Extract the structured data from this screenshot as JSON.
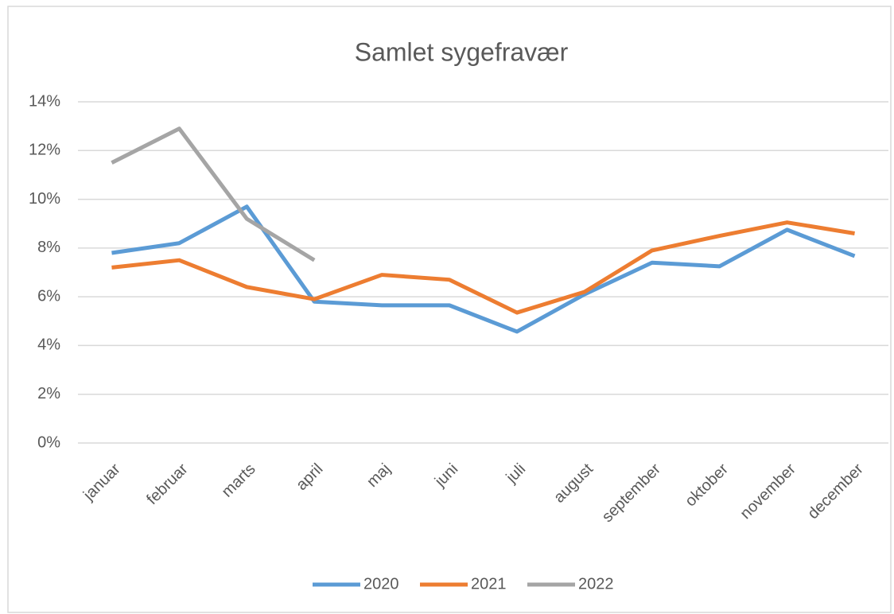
{
  "chart_data": {
    "type": "line",
    "title": "Samlet sygefravær",
    "categories": [
      "januar",
      "februar",
      "marts",
      "april",
      "maj",
      "juni",
      "juli",
      "august",
      "september",
      "oktober",
      "november",
      "december"
    ],
    "series": [
      {
        "name": "2020",
        "color": "#5b9bd5",
        "values": [
          7.8,
          8.2,
          9.7,
          5.8,
          5.65,
          5.65,
          4.57,
          6.1,
          7.4,
          7.25,
          8.75,
          7.67
        ]
      },
      {
        "name": "2021",
        "color": "#ed7d31",
        "values": [
          7.2,
          7.5,
          6.4,
          5.9,
          6.9,
          6.7,
          5.35,
          6.2,
          7.9,
          8.5,
          9.05,
          8.6
        ]
      },
      {
        "name": "2022",
        "color": "#a5a5a5",
        "values": [
          11.5,
          12.9,
          9.2,
          7.5,
          null,
          null,
          null,
          null,
          null,
          null,
          null,
          null
        ]
      }
    ],
    "ylim": [
      0,
      14
    ],
    "yticks": [
      {
        "value": 0,
        "label": "0%"
      },
      {
        "value": 2,
        "label": "2%"
      },
      {
        "value": 4,
        "label": "4%"
      },
      {
        "value": 6,
        "label": "6%"
      },
      {
        "value": 8,
        "label": "8%"
      },
      {
        "value": 10,
        "label": "10%"
      },
      {
        "value": 12,
        "label": "12%"
      },
      {
        "value": 14,
        "label": "14%"
      }
    ],
    "grid": true,
    "legend": "bottom"
  }
}
